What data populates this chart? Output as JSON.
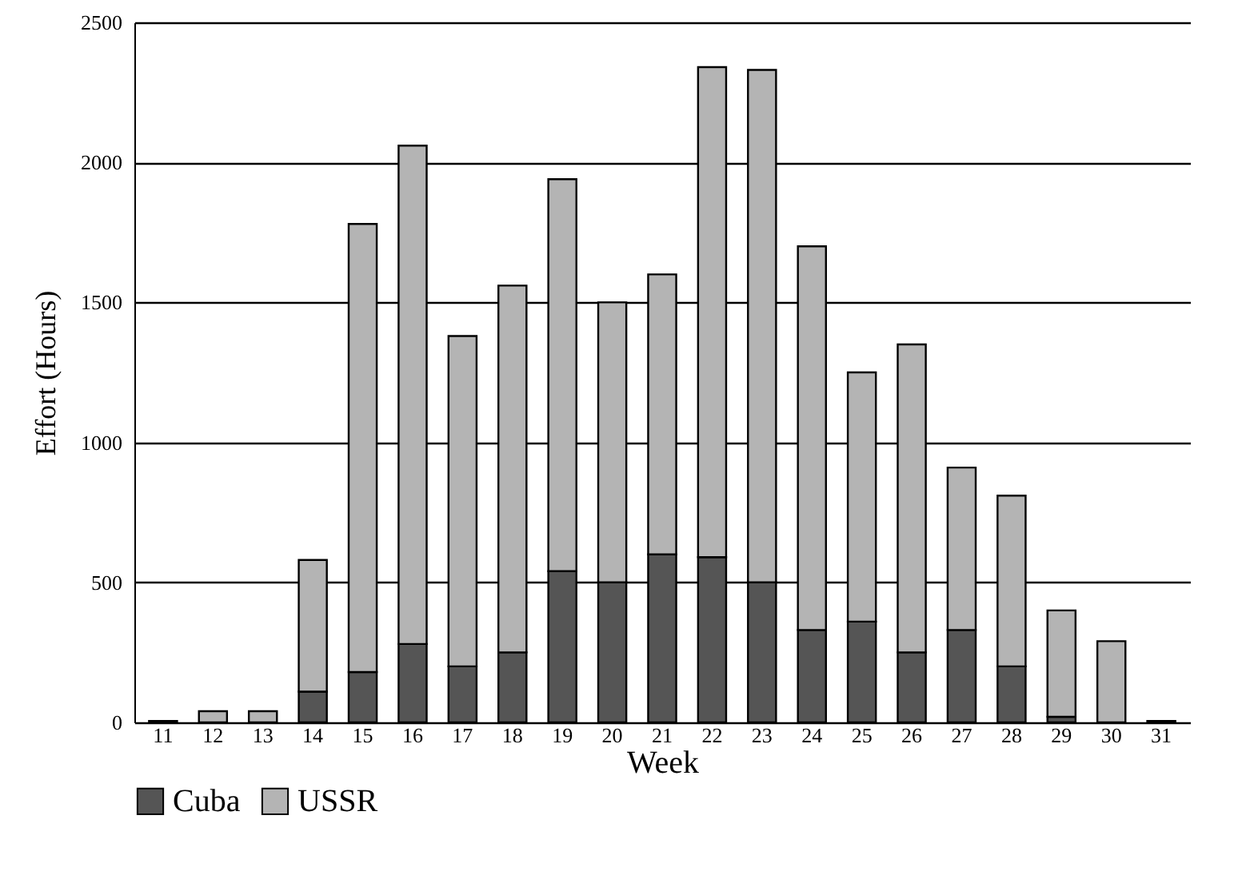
{
  "chart_data": {
    "type": "bar",
    "stacked": true,
    "xlabel": "Week",
    "ylabel": "Effort (Hours)",
    "categories": [
      "11",
      "12",
      "13",
      "14",
      "15",
      "16",
      "17",
      "18",
      "19",
      "20",
      "21",
      "22",
      "23",
      "24",
      "25",
      "26",
      "27",
      "28",
      "29",
      "30",
      "31"
    ],
    "series": [
      {
        "name": "Cuba",
        "color": "#555555",
        "values": [
          5,
          0,
          0,
          110,
          180,
          280,
          200,
          250,
          540,
          500,
          600,
          590,
          500,
          330,
          360,
          250,
          330,
          200,
          20,
          0,
          5
        ]
      },
      {
        "name": "USSR",
        "color": "#b4b4b4",
        "values": [
          0,
          40,
          40,
          470,
          1600,
          1780,
          1180,
          1310,
          1400,
          1000,
          1000,
          1750,
          1830,
          1370,
          890,
          1100,
          580,
          610,
          380,
          290,
          0
        ]
      }
    ],
    "ylim": [
      0,
      2500
    ],
    "yticks": [
      0,
      500,
      1000,
      1500,
      2000,
      2500
    ],
    "grid": "y",
    "legend": "bottom"
  }
}
